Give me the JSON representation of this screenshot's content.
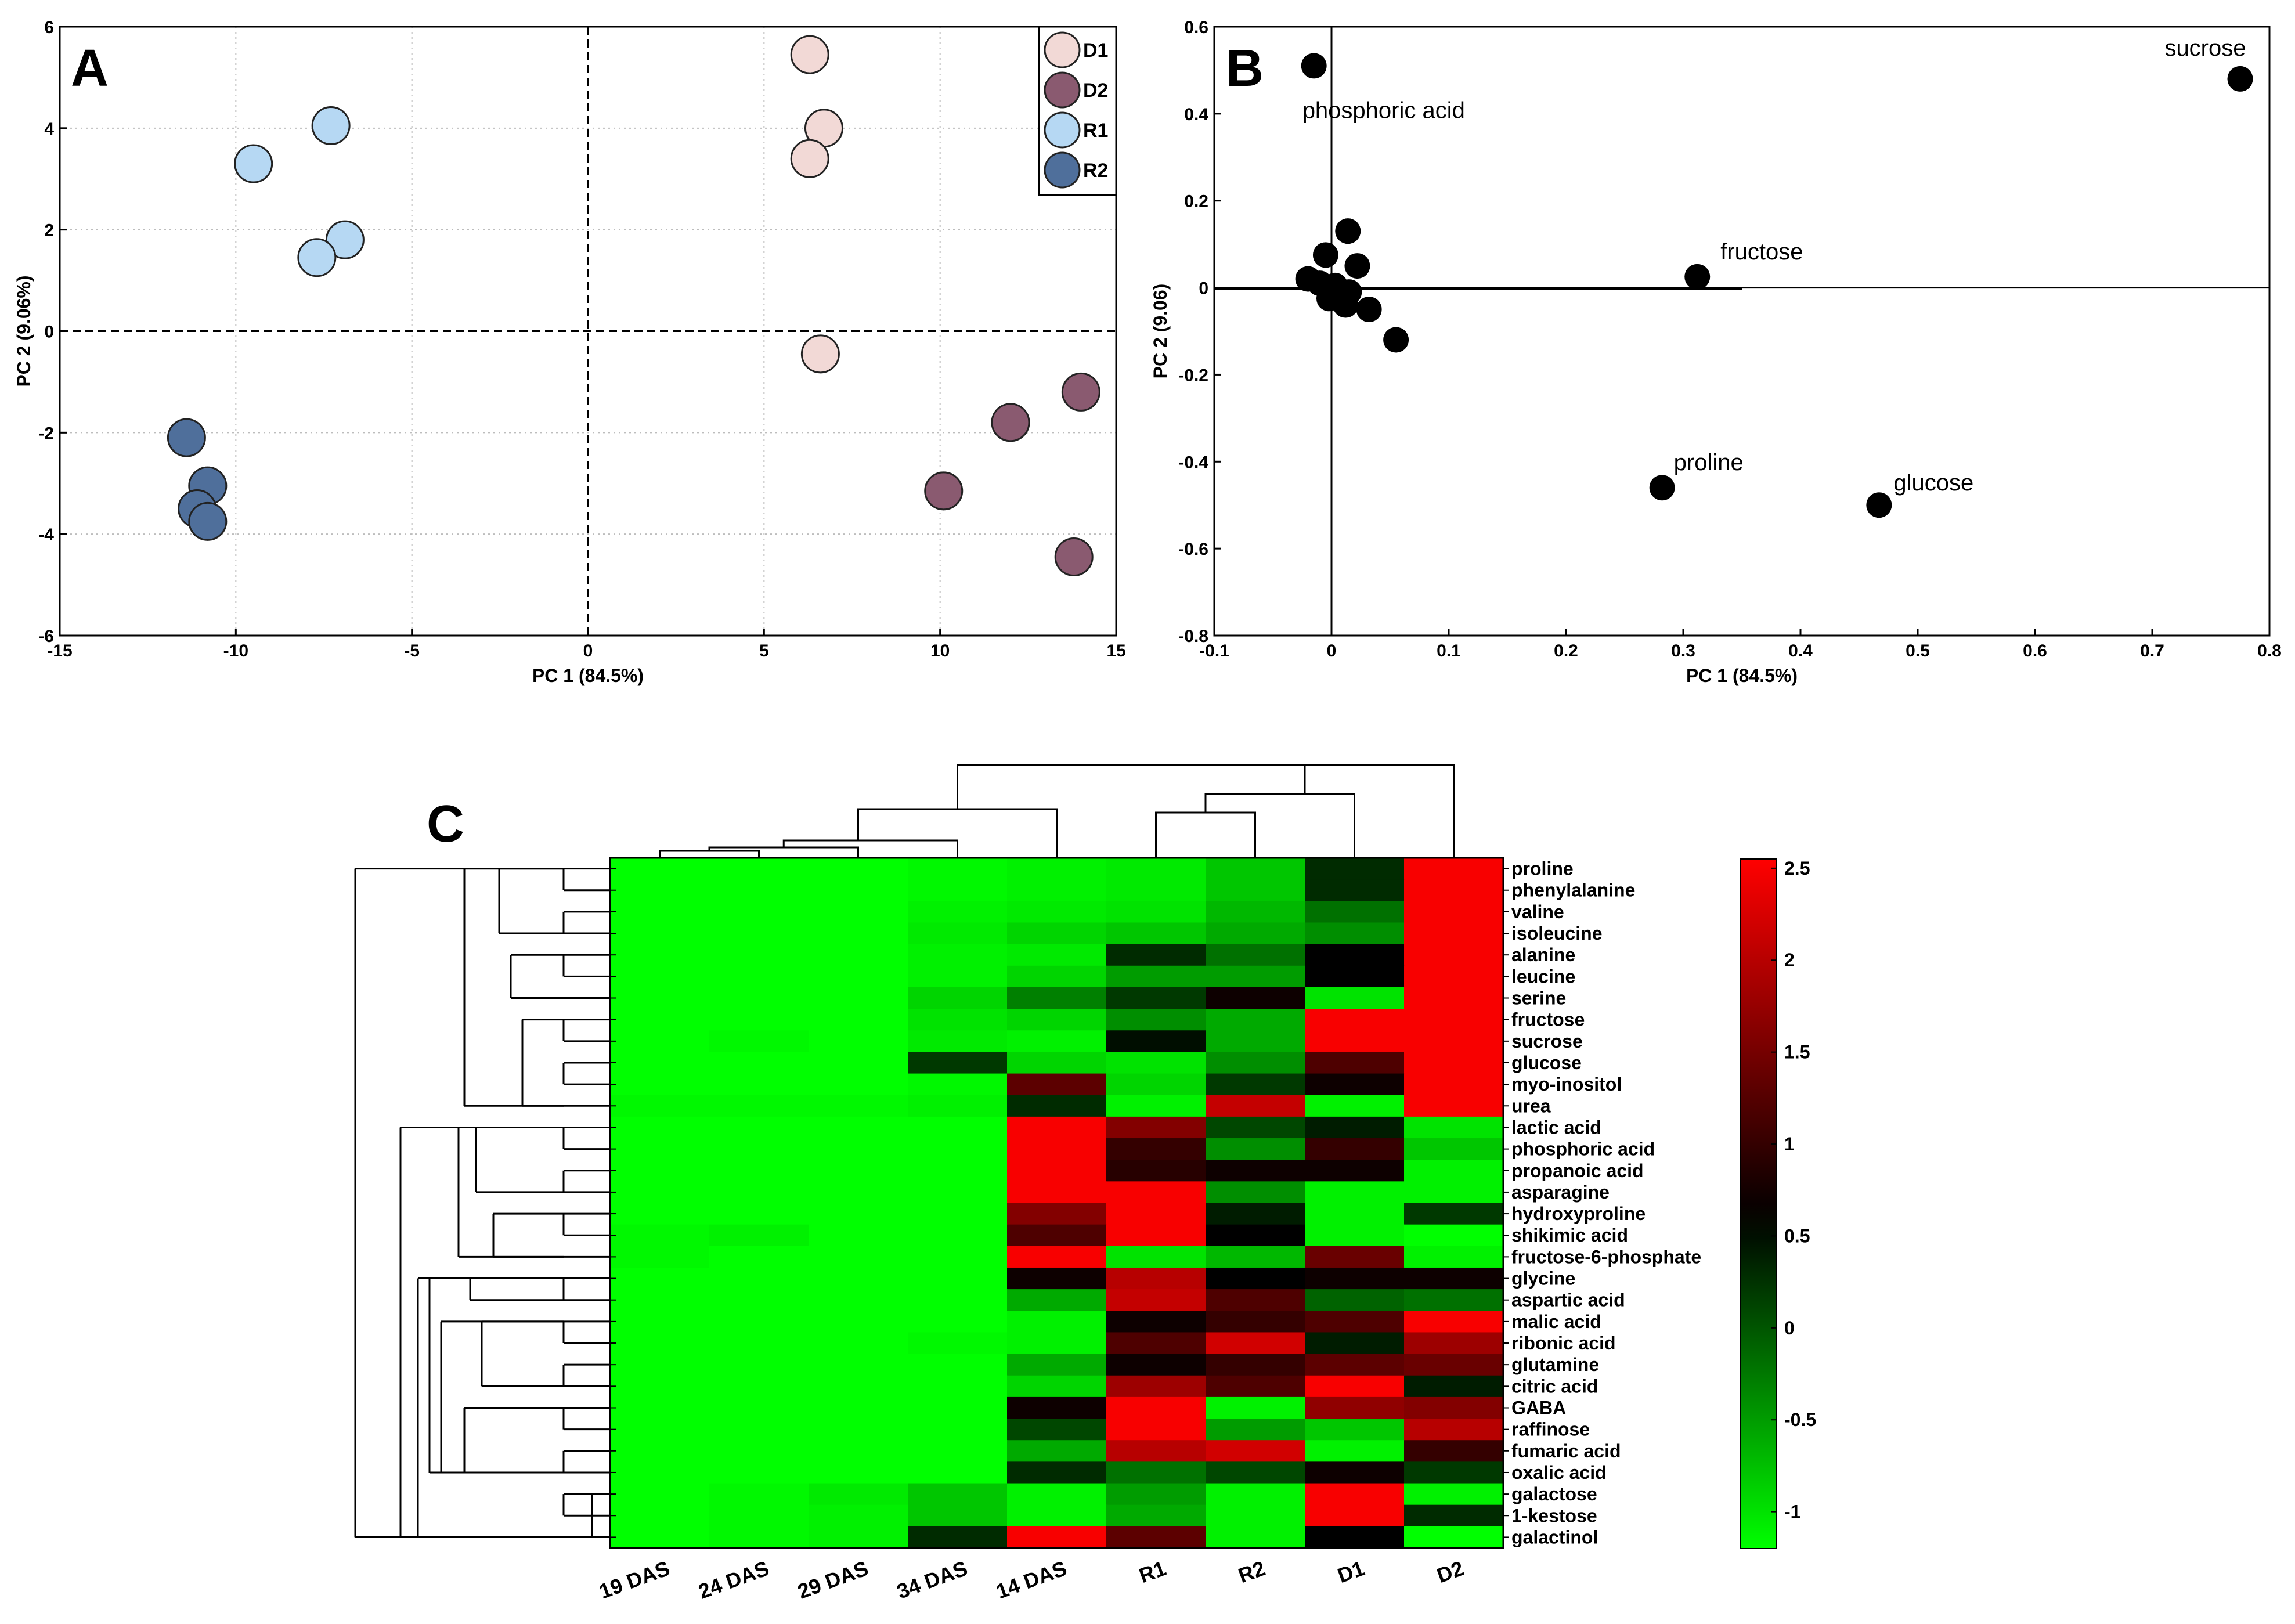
{
  "chart_data": [
    {
      "type": "scatter",
      "panel_label": "A",
      "xlabel": "PC 1 (84.5%)",
      "ylabel": "PC 2 (9.06%)",
      "xlim": [
        -15,
        15
      ],
      "ylim": [
        -6,
        6
      ],
      "xticks": [
        -15,
        -10,
        -5,
        0,
        5,
        10,
        15
      ],
      "yticks": [
        -6,
        -4,
        -2,
        0,
        2,
        4,
        6
      ],
      "grid": true,
      "legend_position": "top-right",
      "series": [
        {
          "name": "D1",
          "color": "#f2d9d6",
          "x": [
            6.3,
            6.7,
            6.3,
            6.6
          ],
          "y": [
            5.45,
            4.0,
            3.4,
            -0.45
          ]
        },
        {
          "name": "D2",
          "color": "#8a5a70",
          "x": [
            14.0,
            12.0,
            10.1,
            13.8
          ],
          "y": [
            -1.2,
            -1.8,
            -3.15,
            -4.45
          ]
        },
        {
          "name": "R1",
          "color": "#b6d8f3",
          "x": [
            -7.3,
            -9.5,
            -6.9,
            -7.7
          ],
          "y": [
            4.05,
            3.3,
            1.8,
            1.45
          ]
        },
        {
          "name": "R2",
          "color": "#4f6f9b",
          "x": [
            -11.4,
            -10.8,
            -11.1,
            -10.8
          ],
          "y": [
            -2.1,
            -3.05,
            -3.5,
            -3.75
          ]
        }
      ]
    },
    {
      "type": "scatter",
      "panel_label": "B",
      "xlabel": "PC 1 (84.5%)",
      "ylabel": "PC 2 (9.06)",
      "xlim": [
        -0.1,
        0.8
      ],
      "ylim": [
        -0.8,
        0.6
      ],
      "xticks": [
        -0.1,
        0,
        0.1,
        0.2,
        0.3,
        0.4,
        0.5,
        0.6,
        0.7,
        0.8
      ],
      "yticks": [
        -0.8,
        -0.6,
        -0.4,
        -0.2,
        0,
        0.2,
        0.4,
        0.6
      ],
      "grid": false,
      "points": [
        {
          "x": -0.015,
          "y": 0.51,
          "label": "phosphoric acid"
        },
        {
          "x": 0.775,
          "y": 0.48,
          "label": "sucrose"
        },
        {
          "x": 0.312,
          "y": 0.025,
          "label": "fructose"
        },
        {
          "x": 0.282,
          "y": -0.46,
          "label": "proline"
        },
        {
          "x": 0.467,
          "y": -0.5,
          "label": "glucose"
        },
        {
          "x": 0.014,
          "y": 0.13,
          "label": ""
        },
        {
          "x": -0.005,
          "y": 0.075,
          "label": ""
        },
        {
          "x": 0.022,
          "y": 0.05,
          "label": ""
        },
        {
          "x": -0.02,
          "y": 0.02,
          "label": ""
        },
        {
          "x": -0.01,
          "y": 0.01,
          "label": ""
        },
        {
          "x": 0.003,
          "y": 0.005,
          "label": ""
        },
        {
          "x": 0.015,
          "y": -0.01,
          "label": ""
        },
        {
          "x": -0.002,
          "y": -0.025,
          "label": ""
        },
        {
          "x": 0.012,
          "y": -0.04,
          "label": ""
        },
        {
          "x": 0.032,
          "y": -0.05,
          "label": ""
        },
        {
          "x": 0.055,
          "y": -0.12,
          "label": ""
        }
      ]
    },
    {
      "type": "heatmap",
      "panel_label": "C",
      "columns": [
        "19 DAS",
        "24 DAS",
        "29 DAS",
        "34 DAS",
        "14 DAS",
        "R1",
        "R2",
        "D1",
        "D2"
      ],
      "rows": [
        "proline",
        "phenylalanine",
        "valine",
        "isoleucine",
        "alanine",
        "leucine",
        "serine",
        "fructose",
        "sucrose",
        "glucose",
        "myo-inositol",
        "urea",
        "lactic acid",
        "phosphoric acid",
        "propanoic acid",
        "asparagine",
        "hydroxyproline",
        "shikimic acid",
        "fructose-6-phosphate",
        "glycine",
        "aspartic acid",
        "malic acid",
        "ribonic acid",
        "glutamine",
        "citric acid",
        "GABA",
        "raffinose",
        "fumaric acid",
        "oxalic acid",
        "galactose",
        "1-kestose",
        "galactinol"
      ],
      "values": [
        [
          -1.2,
          -1.2,
          -1.2,
          -1.15,
          -1.1,
          -1.05,
          -0.8,
          0.3,
          2.5
        ],
        [
          -1.2,
          -1.2,
          -1.2,
          -1.15,
          -1.1,
          -1.05,
          -0.8,
          0.3,
          2.5
        ],
        [
          -1.2,
          -1.2,
          -1.2,
          -1.1,
          -1.05,
          -1.0,
          -0.7,
          -0.2,
          2.5
        ],
        [
          -1.2,
          -1.2,
          -1.2,
          -1.05,
          -0.9,
          -0.8,
          -0.6,
          -0.4,
          2.5
        ],
        [
          -1.2,
          -1.2,
          -1.2,
          -1.1,
          -1.05,
          0.3,
          -0.2,
          0.6,
          2.5
        ],
        [
          -1.2,
          -1.2,
          -1.2,
          -1.1,
          -0.9,
          -0.5,
          -0.5,
          0.6,
          2.5
        ],
        [
          -1.2,
          -1.2,
          -1.2,
          -0.9,
          -0.3,
          0.2,
          0.7,
          -1.0,
          2.5
        ],
        [
          -1.2,
          -1.2,
          -1.2,
          -1.0,
          -0.9,
          -0.4,
          -0.6,
          2.5,
          2.5
        ],
        [
          -1.2,
          -1.15,
          -1.2,
          -1.05,
          -1.1,
          0.5,
          -0.6,
          2.5,
          2.5
        ],
        [
          -1.2,
          -1.2,
          -1.2,
          0.2,
          -0.9,
          -1.0,
          -0.4,
          1.2,
          2.5
        ],
        [
          -1.2,
          -1.2,
          -1.2,
          -1.15,
          1.3,
          -0.9,
          0.2,
          0.7,
          2.5
        ],
        [
          -1.15,
          -1.15,
          -1.15,
          -1.1,
          0.3,
          -1.1,
          2.1,
          -1.1,
          2.5
        ],
        [
          -1.2,
          -1.2,
          -1.2,
          -1.2,
          2.5,
          1.6,
          0.1,
          0.4,
          -1.0
        ],
        [
          -1.2,
          -1.2,
          -1.2,
          -1.2,
          2.5,
          1.0,
          -0.4,
          1.0,
          -0.8
        ],
        [
          -1.2,
          -1.2,
          -1.2,
          -1.2,
          2.5,
          0.9,
          0.7,
          0.7,
          -1.1
        ],
        [
          -1.2,
          -1.2,
          -1.2,
          -1.2,
          2.5,
          2.5,
          -0.4,
          -1.1,
          -1.1
        ],
        [
          -1.2,
          -1.2,
          -1.2,
          -1.2,
          1.6,
          2.5,
          0.4,
          -1.1,
          0.2
        ],
        [
          -1.15,
          -1.1,
          -1.2,
          -1.2,
          1.2,
          2.5,
          0.6,
          -1.1,
          -1.2
        ],
        [
          -1.15,
          -1.2,
          -1.2,
          -1.2,
          2.5,
          -1.0,
          -0.7,
          1.4,
          -1.1
        ],
        [
          -1.2,
          -1.2,
          -1.2,
          -1.2,
          0.7,
          2.0,
          0.6,
          0.7,
          0.7
        ],
        [
          -1.2,
          -1.2,
          -1.2,
          -1.2,
          -0.6,
          2.1,
          1.2,
          -0.1,
          -0.2
        ],
        [
          -1.2,
          -1.2,
          -1.2,
          -1.2,
          -1.1,
          0.7,
          1.0,
          1.2,
          2.5
        ],
        [
          -1.2,
          -1.2,
          -1.2,
          -1.15,
          -1.1,
          1.2,
          2.2,
          0.4,
          1.8
        ],
        [
          -1.2,
          -1.2,
          -1.2,
          -1.2,
          -0.6,
          0.7,
          1.0,
          1.3,
          1.4
        ],
        [
          -1.2,
          -1.2,
          -1.2,
          -1.2,
          -0.9,
          1.8,
          1.2,
          2.5,
          0.4
        ],
        [
          -1.2,
          -1.2,
          -1.2,
          -1.2,
          0.7,
          2.5,
          -1.1,
          1.7,
          1.6
        ],
        [
          -1.2,
          -1.2,
          -1.2,
          -1.2,
          0.1,
          2.5,
          -0.5,
          -0.8,
          2.0
        ],
        [
          -1.2,
          -1.2,
          -1.2,
          -1.2,
          -0.6,
          2.0,
          2.2,
          -1.1,
          1.0
        ],
        [
          -1.2,
          -1.2,
          -1.2,
          -1.2,
          0.3,
          -0.2,
          0.1,
          0.7,
          0.2
        ],
        [
          -1.2,
          -1.15,
          -1.05,
          -0.8,
          -1.1,
          -0.5,
          -1.1,
          2.5,
          -1.1
        ],
        [
          -1.2,
          -1.15,
          -1.1,
          -0.8,
          -1.1,
          -0.6,
          -1.1,
          2.5,
          0.3
        ],
        [
          -1.2,
          -1.15,
          -1.1,
          0.3,
          2.5,
          1.3,
          -1.1,
          0.6,
          -1.2
        ]
      ],
      "colorbar": {
        "ticks": [
          2.5,
          2,
          1.5,
          1,
          0.5,
          0,
          -0.5,
          -1
        ],
        "range": [
          -1.2,
          2.55
        ],
        "low_color": "#00ff00",
        "mid_color": "#000000",
        "high_color": "#ff0000"
      }
    }
  ]
}
